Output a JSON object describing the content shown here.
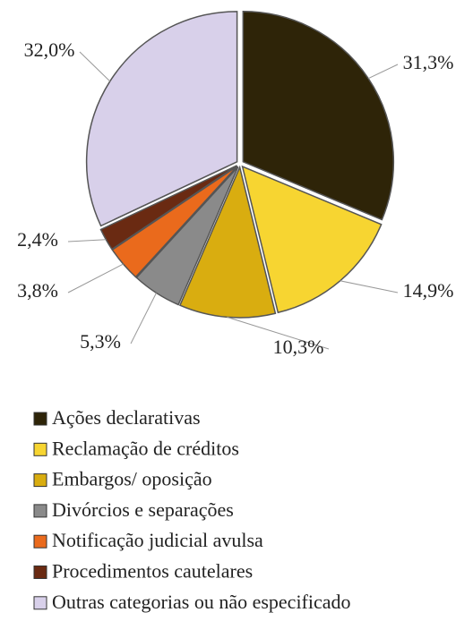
{
  "chart_data": {
    "type": "pie",
    "categories": [
      "Ações declarativas",
      "Reclamação de créditos",
      "Embargos/ oposição",
      "Divórcios e separações",
      "Notificação judicial avulsa",
      "Procedimentos cautelares",
      "Outras categorias ou não especificado"
    ],
    "values": [
      31.3,
      14.9,
      10.3,
      5.3,
      3.8,
      2.4,
      32.0
    ],
    "value_labels": [
      "31,3%",
      "14,9%",
      "10,3%",
      "5,3%",
      "3,8%",
      "2,4%",
      "32,0%"
    ],
    "colors": [
      "#2e2408",
      "#f7d531",
      "#d9ad10",
      "#8a8a8a",
      "#ea6a1c",
      "#6a2a12",
      "#d8d0ea"
    ],
    "legend": "bottom"
  }
}
